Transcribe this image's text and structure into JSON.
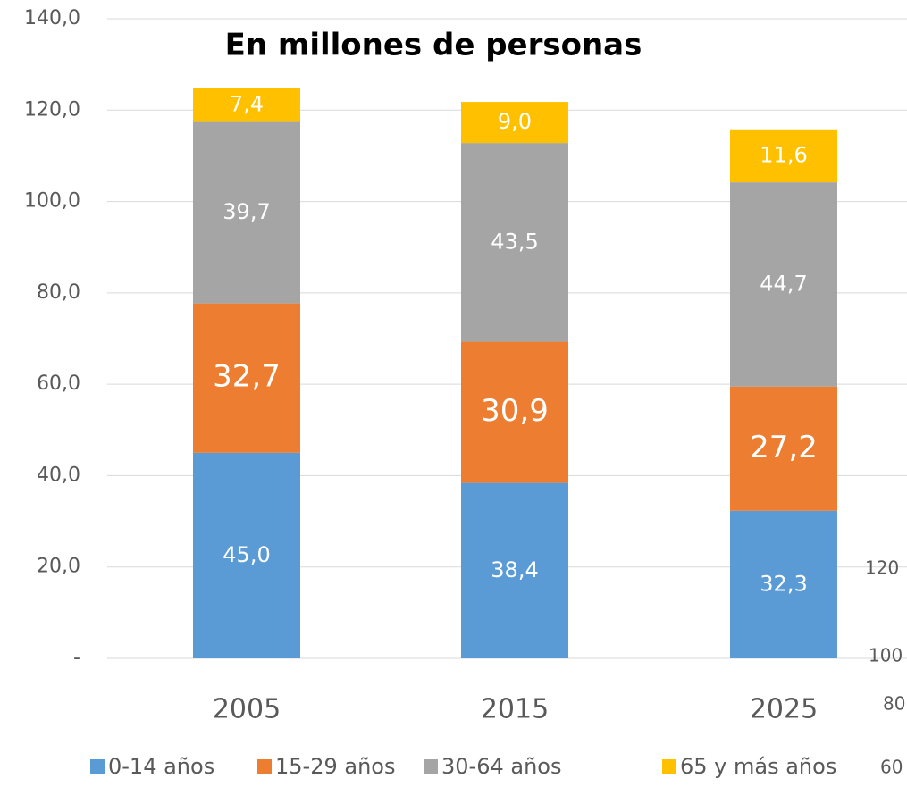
{
  "chart_data": {
    "type": "stacked_bar",
    "title": "En millones de personas",
    "categories": [
      "2005",
      "2015",
      "2025"
    ],
    "series": [
      {
        "name": "0-14 años",
        "color": "#5b9bd5",
        "values": [
          45.0,
          38.4,
          32.3
        ],
        "value_labels": [
          "45,0",
          "38,4",
          "32,3"
        ]
      },
      {
        "name": "15-29 años",
        "color": "#ed7d31",
        "values": [
          32.7,
          30.9,
          27.2
        ],
        "value_labels": [
          "32,7",
          "30,9",
          "27,2"
        ]
      },
      {
        "name": "30-64 años",
        "color": "#a5a5a5",
        "values": [
          39.7,
          43.5,
          44.7
        ],
        "value_labels": [
          "39,7",
          "43,5",
          "44,7"
        ]
      },
      {
        "name": "65 y más años",
        "color": "#ffc000",
        "values": [
          7.4,
          9.0,
          11.6
        ],
        "value_labels": [
          "7,4",
          "9,0",
          "11,6"
        ]
      }
    ],
    "ylim": [
      0,
      140
    ],
    "yticks": [
      {
        "value": 0,
        "label": "-"
      },
      {
        "value": 20,
        "label": "20,0"
      },
      {
        "value": 40,
        "label": "40,0"
      },
      {
        "value": 60,
        "label": "60,0"
      },
      {
        "value": 80,
        "label": "80,0"
      },
      {
        "value": 100,
        "label": "100,0"
      },
      {
        "value": 120,
        "label": "120,0"
      },
      {
        "value": 140,
        "label": "140,0"
      }
    ],
    "grid": true,
    "legend": "bottom",
    "stray_texts": [
      "120",
      "100",
      "80",
      "60"
    ]
  }
}
